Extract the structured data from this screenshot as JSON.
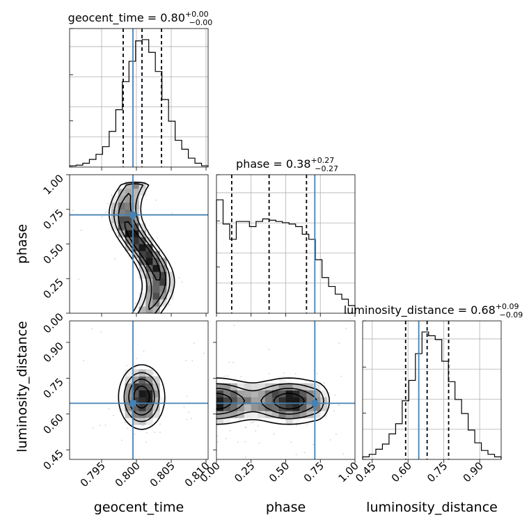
{
  "chart_data": {
    "type": "corner",
    "parameters": [
      "geocent_time",
      "phase",
      "luminosity_distance"
    ],
    "axis_labels": [
      "geocent_time",
      "phase",
      "luminosity_distance"
    ],
    "ranges": [
      [
        0.7904,
        0.8103
      ],
      [
        0.0,
        1.0
      ],
      [
        0.41,
        0.99
      ]
    ],
    "ticks": [
      [
        "0.795",
        "0.800",
        "0.805",
        "0.810"
      ],
      [
        "0.00",
        "0.25",
        "0.50",
        "0.75",
        "1.00"
      ],
      [
        "0.45",
        "0.60",
        "0.75",
        "0.90"
      ]
    ],
    "tick_values": [
      [
        0.795,
        0.8,
        0.805,
        0.81
      ],
      [
        0.0,
        0.25,
        0.5,
        0.75,
        1.0
      ],
      [
        0.45,
        0.6,
        0.75,
        0.9
      ]
    ],
    "truths": [
      0.7995,
      0.71,
      0.645
    ],
    "titles": [
      {
        "name": "geocent_time",
        "median": "0.80",
        "plus": "+0.00",
        "minus": "−0.00"
      },
      {
        "name": "phase",
        "median": "0.38",
        "plus": "+0.27",
        "minus": "−0.27"
      },
      {
        "name": "luminosity_distance",
        "median": "0.68",
        "plus": "+0.09",
        "minus": "−0.09"
      }
    ],
    "quantiles": [
      [
        0.7981,
        0.8008,
        0.8036
      ],
      [
        0.11,
        0.38,
        0.65
      ],
      [
        0.59,
        0.68,
        0.77
      ]
    ],
    "histograms": [
      [
        0.01,
        0.015,
        0.03,
        0.06,
        0.1,
        0.16,
        0.28,
        0.45,
        0.67,
        0.83,
        0.99,
        1.0,
        0.9,
        0.75,
        0.53,
        0.36,
        0.21,
        0.14,
        0.07,
        0.03,
        0.01
      ],
      [
        0.89,
        0.7,
        0.58,
        0.72,
        0.72,
        0.68,
        0.72,
        0.74,
        0.73,
        0.72,
        0.71,
        0.7,
        0.68,
        0.62,
        0.58,
        0.42,
        0.28,
        0.21,
        0.15,
        0.11,
        0.06
      ],
      [
        0.02,
        0.04,
        0.08,
        0.12,
        0.2,
        0.28,
        0.46,
        0.62,
        0.83,
        1.0,
        0.97,
        0.94,
        0.77,
        0.61,
        0.47,
        0.36,
        0.23,
        0.13,
        0.07,
        0.04,
        0.02
      ]
    ],
    "truth_color": "#4682b4",
    "hist_color": "#000000",
    "grid": true
  }
}
